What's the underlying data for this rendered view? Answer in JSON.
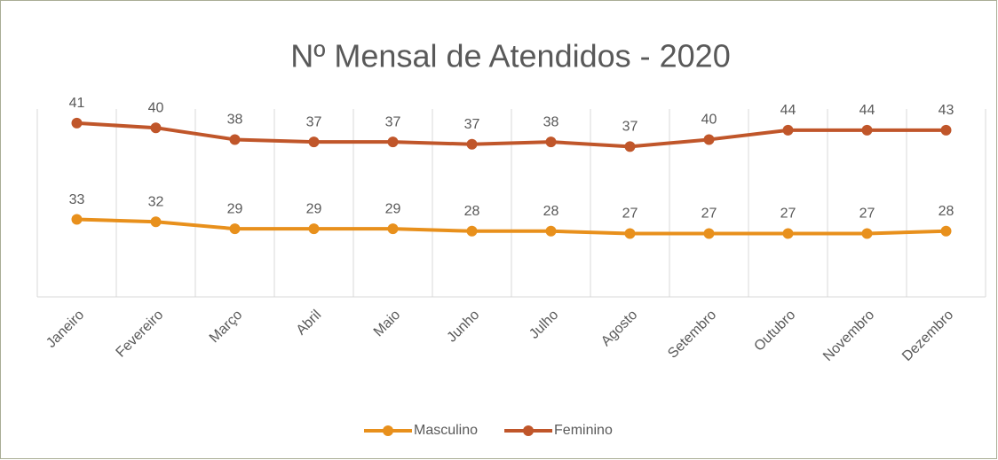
{
  "chart_data": {
    "type": "line",
    "stacked": true,
    "title": "Nº Mensal de Atendidos - 2020",
    "categories": [
      "Janeiro",
      "Fevereiro",
      "Março",
      "Abril",
      "Maio",
      "Junho",
      "Julho",
      "Agosto",
      "Setembro",
      "Outubro",
      "Novembro",
      "Dezembro"
    ],
    "series": [
      {
        "name": "Masculino",
        "color": "#e8901c",
        "values": [
          33,
          32,
          29,
          29,
          29,
          28,
          28,
          27,
          27,
          27,
          27,
          28
        ]
      },
      {
        "name": "Feminino",
        "color": "#c0562a",
        "values": [
          41,
          40,
          38,
          37,
          37,
          37,
          38,
          37,
          40,
          44,
          44,
          43
        ]
      }
    ],
    "ylim": [
      0,
      80
    ],
    "grid": true,
    "legend": "bottom"
  }
}
